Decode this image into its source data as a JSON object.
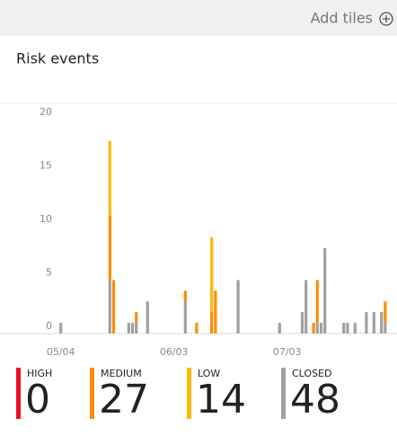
{
  "toolbar": {
    "action": "Add tiles"
  },
  "tile": {
    "title": "Risk events"
  },
  "chart_data": {
    "type": "bar",
    "stacked": true,
    "categories": [
      null,
      null,
      null,
      "05/04",
      null,
      null,
      null,
      null,
      null,
      null,
      null,
      null,
      null,
      null,
      null,
      null,
      null,
      null,
      null,
      null,
      null,
      null,
      null,
      null,
      null,
      null,
      null,
      null,
      null,
      null,
      null,
      null,
      null,
      "06/03",
      null,
      null,
      null,
      null,
      null,
      null,
      null,
      null,
      null,
      null,
      null,
      null,
      null,
      null,
      null,
      null,
      null,
      null,
      null,
      null,
      null,
      null,
      null,
      null,
      null,
      null,
      null,
      null,
      null,
      "07/03",
      null,
      null,
      null,
      null,
      null,
      null,
      null,
      null,
      null,
      null,
      null,
      null,
      null,
      null,
      null,
      null,
      null,
      null,
      null,
      null,
      null,
      null,
      null,
      null,
      null,
      null
    ],
    "ylim": [
      0,
      20
    ],
    "yticks": [
      0,
      5,
      10,
      15,
      20
    ],
    "series": [
      {
        "name": "HIGH",
        "color": "#e81123",
        "total": 0,
        "values": [
          0,
          0,
          0,
          0,
          0,
          0,
          0,
          0,
          0,
          0,
          0,
          0,
          0,
          0,
          0,
          0,
          0,
          0,
          0,
          0,
          0,
          0,
          0,
          0,
          0,
          0,
          0,
          0,
          0,
          0,
          0,
          0,
          0,
          0,
          0,
          0,
          0,
          0,
          0,
          0,
          0,
          0,
          0,
          0,
          0,
          0,
          0,
          0,
          0,
          0,
          0,
          0,
          0,
          0,
          0,
          0,
          0,
          0,
          0,
          0,
          0,
          0,
          0,
          0,
          0,
          0,
          0,
          0,
          0,
          0,
          0,
          0,
          0,
          0,
          0,
          0,
          0,
          0,
          0,
          0,
          0,
          0,
          0,
          0,
          0,
          0,
          0,
          0,
          0,
          0
        ]
      },
      {
        "name": "MEDIUM",
        "color": "#ff8c00",
        "total": 27,
        "values": [
          0,
          0,
          0,
          0,
          0,
          0,
          0,
          0,
          0,
          0,
          0,
          0,
          0,
          0,
          0,
          0,
          6,
          5,
          0,
          0,
          0,
          0,
          0,
          1,
          0,
          0,
          0,
          0,
          0,
          0,
          0,
          0,
          0,
          0,
          0,
          0,
          1,
          0,
          0,
          1,
          0,
          0,
          0,
          2,
          4,
          0,
          0,
          0,
          0,
          0,
          0,
          0,
          0,
          0,
          0,
          0,
          0,
          0,
          0,
          0,
          0,
          0,
          0,
          0,
          0,
          0,
          0,
          0,
          0,
          0,
          1,
          4,
          0,
          0,
          0,
          0,
          0,
          0,
          0,
          0,
          0,
          0,
          0,
          0,
          0,
          0,
          0,
          0,
          0,
          2
        ]
      },
      {
        "name": "LOW",
        "color": "#ffb900",
        "total": 14,
        "values": [
          0,
          0,
          0,
          0,
          0,
          0,
          0,
          0,
          0,
          0,
          0,
          0,
          0,
          0,
          0,
          0,
          7,
          0,
          0,
          0,
          0,
          0,
          0,
          0,
          0,
          0,
          0,
          0,
          0,
          0,
          0,
          0,
          0,
          0,
          0,
          0,
          0,
          0,
          0,
          0,
          0,
          0,
          0,
          7,
          0,
          0,
          0,
          0,
          0,
          0,
          0,
          0,
          0,
          0,
          0,
          0,
          0,
          0,
          0,
          0,
          0,
          0,
          0,
          0,
          0,
          0,
          0,
          0,
          0,
          0,
          0,
          0,
          0,
          0,
          0,
          0,
          0,
          0,
          0,
          0,
          0,
          0,
          0,
          0,
          0,
          0,
          0,
          0,
          0,
          0
        ]
      },
      {
        "name": "CLOSED",
        "color": "#a0a0a0",
        "total": 48,
        "values": [
          0,
          0,
          0,
          1,
          0,
          0,
          0,
          0,
          0,
          0,
          0,
          0,
          0,
          0,
          0,
          0,
          5,
          0,
          0,
          0,
          0,
          1,
          1,
          1,
          0,
          0,
          3,
          0,
          0,
          0,
          0,
          0,
          0,
          0,
          0,
          0,
          3,
          0,
          0,
          0,
          0,
          0,
          0,
          0,
          0,
          0,
          0,
          0,
          0,
          0,
          5,
          0,
          0,
          0,
          0,
          0,
          0,
          0,
          0,
          0,
          0,
          1,
          0,
          0,
          0,
          0,
          0,
          2,
          5,
          0,
          0,
          1,
          1,
          8,
          0,
          0,
          0,
          0,
          1,
          1,
          0,
          1,
          0,
          0,
          2,
          0,
          2,
          0,
          2,
          1
        ]
      }
    ]
  }
}
